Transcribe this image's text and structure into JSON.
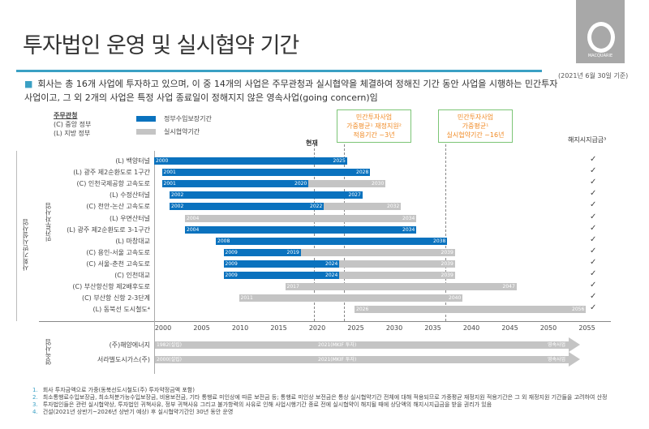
{
  "header": {
    "title": "투자법인 운영 및 실시협약 기간",
    "as_of": "(2021년 6월 30일 기준)",
    "logo_text": "MACQUARIE"
  },
  "bullet": "회사는 총 16개 사업에 투자하고 있으며, 이 중 14개의 사업은 주무관청과 실시협약을 체결하여 정해진 기간 동안 사업을 시행하는 민간투자사업이고, 그 외 2개의 사업은 특정 사업 종료일이 정해지지 않은 영속사업(going concern)임",
  "legend": {
    "authority_title": "주무관청",
    "central": "(C) 중앙 정부",
    "local": "(L) 지방 정부",
    "blue": "정부수입보장기간",
    "gray": "실시협약기간"
  },
  "callouts": [
    "민간투자사업",
    "가중평균¹ 재정지원²",
    "적용기간 ~3년",
    "민간투자사업",
    "가중평균¹",
    "실시협약기간 ~16년"
  ],
  "now_label": "현재",
  "termination_header": "해지시지급금³",
  "group_labels": {
    "infra": "사회기반시설사업",
    "ppp": "민간투자사업",
    "going": "영속사업"
  },
  "colors": {
    "blue": "#0a72be",
    "gray": "#c4c4c4"
  },
  "chart_data": {
    "type": "bar",
    "title": "투자법인 운영 및 실시협약 기간",
    "xlim": [
      2000,
      2055
    ],
    "x_ticks": [
      "2000",
      "2005",
      "2010",
      "2015",
      "2020",
      "2025",
      "2030",
      "2035",
      "2040",
      "2045",
      "2050",
      "2055"
    ],
    "reference_lines": [
      2020.7,
      2024.6,
      2037.8
    ],
    "projects": [
      {
        "name": "(L) 백양터널",
        "start": 2000,
        "blue_end": 2025,
        "end": 2025,
        "labels": [
          "2000",
          "2025"
        ]
      },
      {
        "name": "(L) 광주 제2순환도로 1구간",
        "start": 2001,
        "blue_end": 2028,
        "end": 2028,
        "labels": [
          "2001",
          "2028"
        ]
      },
      {
        "name": "(C) 인천국제공항 고속도로",
        "start": 2001,
        "blue_end": 2020,
        "end": 2030,
        "labels": [
          "2001",
          "2020",
          "2030"
        ]
      },
      {
        "name": "(L) 수정산터널",
        "start": 2002,
        "blue_end": 2027,
        "end": 2027,
        "labels": [
          "2002",
          "2027"
        ]
      },
      {
        "name": "(C) 천안-논산 고속도로",
        "start": 2002,
        "blue_end": 2022,
        "end": 2032,
        "labels": [
          "2002",
          "2022",
          "2032"
        ]
      },
      {
        "name": "(L) 우면산터널",
        "start": 2004,
        "blue_end": null,
        "end": 2034,
        "labels": [
          "2004",
          "2034"
        ]
      },
      {
        "name": "(L) 광주 제2순환도로 3-1구간",
        "start": 2004,
        "blue_end": 2034,
        "end": 2034,
        "labels": [
          "2004",
          "2034"
        ]
      },
      {
        "name": "(L) 마창대교",
        "start": 2008,
        "blue_end": 2038,
        "end": 2038,
        "labels": [
          "2008",
          "2038"
        ]
      },
      {
        "name": "(C) 용인-서울 고속도로",
        "start": 2009,
        "blue_end": 2019,
        "end": 2039,
        "labels": [
          "2009",
          "2019",
          "2039"
        ]
      },
      {
        "name": "(C) 서울-춘천 고속도로",
        "start": 2009,
        "blue_end": 2024,
        "end": 2039,
        "labels": [
          "2009",
          "2024",
          "2039"
        ]
      },
      {
        "name": "(C) 인천대교",
        "start": 2009,
        "blue_end": 2024,
        "end": 2039,
        "labels": [
          "2009",
          "2024",
          "2039"
        ]
      },
      {
        "name": "(C) 부산항신항 제2배후도로",
        "start": 2017,
        "blue_end": null,
        "end": 2047,
        "labels": [
          "2017",
          "2047"
        ]
      },
      {
        "name": "(C) 부산항 신항 2-3단계",
        "start": 2011,
        "blue_end": null,
        "end": 2040,
        "labels": [
          "2011",
          "2040"
        ]
      },
      {
        "name": "(L) 동북선 도시철도⁴",
        "start": 2026,
        "blue_end": null,
        "end": 2056,
        "labels": [
          "2026",
          "2056"
        ]
      }
    ],
    "going_concerns": [
      {
        "name": "(주)해양에너지",
        "labels": [
          "1982(설립)",
          "2021(MKIF 투자)",
          "영속사업"
        ]
      },
      {
        "name": "서라벌도시가스(주)",
        "labels": [
          "2000(설립)",
          "2021(MKIF 투자)",
          "영속사업"
        ]
      }
    ],
    "termination_check": "✓"
  },
  "footnotes": [
    {
      "n": "1.",
      "text": "회사 투자금액으로 가중(동북선도시철도(주) 투자약정금액 포함)"
    },
    {
      "n": "2.",
      "text": "최소통행료수입보장금, 최소처분가능수입보장금, 비용보전금, 기타 통행료 미인상에 따른 보전금 등; 통행료 미인상 보전금은 통상 실시협약기간 전체에 대해 적용되므로 가중평균 재정지원 적용기간은 그 외 재정지원 기간들을 고려하여 산정"
    },
    {
      "n": "3.",
      "text": "투자법인들은 관련 실시협약상, 투자법인 귀책사유, 정부 귀책사유 그리고 불가항력의 사유로 인해 사업시행기간 종료 전에 실시협약이 해지될 때에 상당액의 해지시지급금을 받을 권리가 있음"
    },
    {
      "n": "4.",
      "text": "건설(2021년 상반기~2026년 상반기 예상) 후 실시협약기간인 30년 동안 운영"
    }
  ]
}
